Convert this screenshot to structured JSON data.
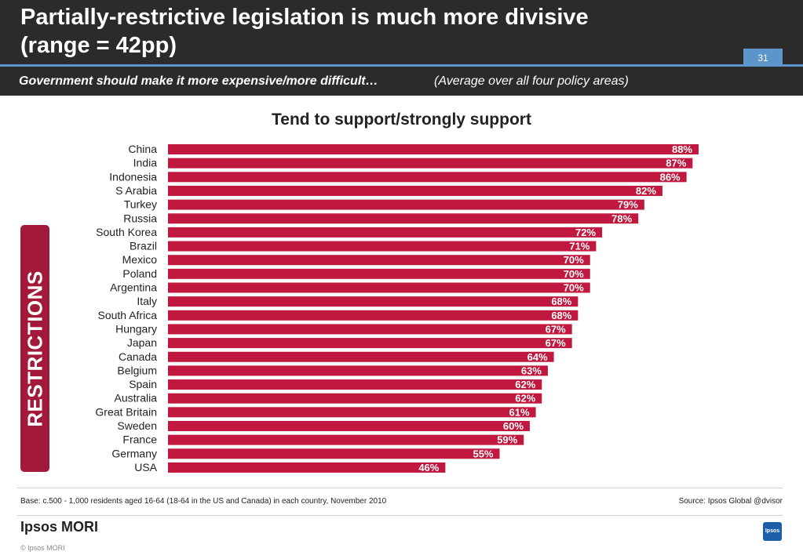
{
  "header": {
    "title_line1": "Partially-restrictive legislation is much more divisive",
    "title_line2": "(range = 42pp)",
    "page_number": "31",
    "subtitle_bold": "Government should make it more expensive/more difficult…",
    "subtitle_rest": "(Average over all four policy areas)"
  },
  "side_tab": "RESTRICTIONS",
  "footer": {
    "base": "Base: c.500 - 1,000 residents aged 16-64 (18-64 in the US and Canada) in each country, November 2010",
    "source": "Source: Ipsos Global @dvisor",
    "logo": "Ipsos MORI",
    "copyright": "© Ipsos MORI",
    "badge": "Ipsos"
  },
  "colors": {
    "bar": "#c0183f",
    "header": "#2b2b2b",
    "accent": "#5b95c9"
  },
  "chart_data": {
    "type": "bar",
    "orientation": "horizontal",
    "title": "Tend to support/strongly support",
    "categories": [
      "China",
      "India",
      "Indonesia",
      "S Arabia",
      "Turkey",
      "Russia",
      "South Korea",
      "Brazil",
      "Mexico",
      "Poland",
      "Argentina",
      "Italy",
      "South Africa",
      "Hungary",
      "Japan",
      "Canada",
      "Belgium",
      "Spain",
      "Australia",
      "Great Britain",
      "Sweden",
      "France",
      "Germany",
      "USA"
    ],
    "values": [
      88,
      87,
      86,
      82,
      79,
      78,
      72,
      71,
      70,
      70,
      70,
      68,
      68,
      67,
      67,
      64,
      63,
      62,
      62,
      61,
      60,
      59,
      55,
      46
    ],
    "labels": [
      "88%",
      "87%",
      "86%",
      "82%",
      "79%",
      "78%",
      "72%",
      "71%",
      "70%",
      "70%",
      "70%",
      "68%",
      "68%",
      "67%",
      "67%",
      "64%",
      "63%",
      "62%",
      "62%",
      "61%",
      "60%",
      "59%",
      "55%",
      "46%"
    ],
    "xlim": [
      0,
      88
    ]
  }
}
